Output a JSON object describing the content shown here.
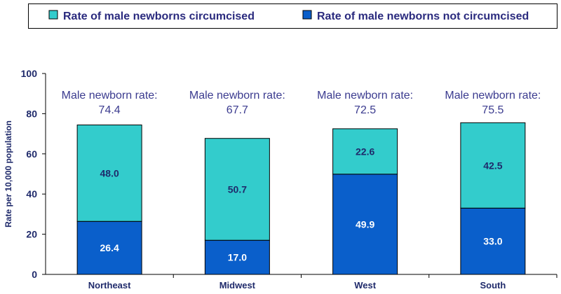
{
  "chart_data": {
    "type": "bar",
    "stacked": true,
    "categories": [
      "Northeast",
      "Midwest",
      "West",
      "South"
    ],
    "series": [
      {
        "name": "Rate of male newborns not circumcised",
        "values": [
          26.4,
          17.0,
          49.9,
          33.0
        ],
        "color": "#0a5fcb"
      },
      {
        "name": "Rate of male newborns circumcised",
        "values": [
          48.0,
          50.7,
          22.6,
          42.5
        ],
        "color": "#33cccc"
      }
    ],
    "legend": [
      {
        "label": "Rate of male newborns circumcised",
        "color": "#33cccc"
      },
      {
        "label": "Rate of male newborns not circumcised",
        "color": "#0a5fcb"
      }
    ],
    "legend_placement": "top",
    "annotations": [
      {
        "line1": "Male newborn rate:",
        "line2": "74.4"
      },
      {
        "line1": "Male newborn rate:",
        "line2": "67.7"
      },
      {
        "line1": "Male newborn rate:",
        "line2": "72.5"
      },
      {
        "line1": "Male newborn rate:",
        "line2": "75.5"
      }
    ],
    "ylabel": "Rate per 10,000 population",
    "xlabel": "",
    "ylim": [
      0,
      100
    ],
    "yticks": [
      0,
      20,
      40,
      60,
      80,
      100
    ],
    "grid": false
  }
}
